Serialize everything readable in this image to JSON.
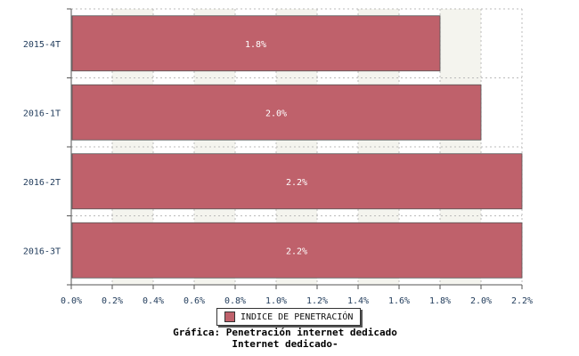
{
  "chart_data": {
    "type": "bar",
    "orientation": "horizontal",
    "categories": [
      "2015-4T",
      "2016-1T",
      "2016-2T",
      "2016-3T"
    ],
    "series": [
      {
        "name": "INDICE DE PENETRACIÓN",
        "values": [
          1.8,
          2.0,
          2.2,
          2.2
        ],
        "value_labels": [
          "1.8%",
          "2.0%",
          "2.2%",
          "2.2%"
        ],
        "color": "#bf616b"
      }
    ],
    "xlim": [
      0,
      2.2
    ],
    "x_ticks": [
      0.0,
      0.2,
      0.4,
      0.6,
      0.8,
      1.0,
      1.2,
      1.4,
      1.6,
      1.8,
      2.0,
      2.2
    ],
    "x_tick_labels": [
      "0.0%",
      "0.2%",
      "0.4%",
      "0.6%",
      "0.8%",
      "1.0%",
      "1.2%",
      "1.4%",
      "1.6%",
      "1.8%",
      "2.0%",
      "2.2%"
    ],
    "grid": true,
    "legend_position": "bottom-center",
    "title": "",
    "xlabel": "",
    "ylabel": ""
  },
  "caption": {
    "line1": "Gráfica: Penetración internet dedicado",
    "line2": "Internet dedicado-"
  },
  "colors": {
    "axis": "#555555",
    "grid": "#bbbbbb",
    "band": "#f4f4ee"
  }
}
